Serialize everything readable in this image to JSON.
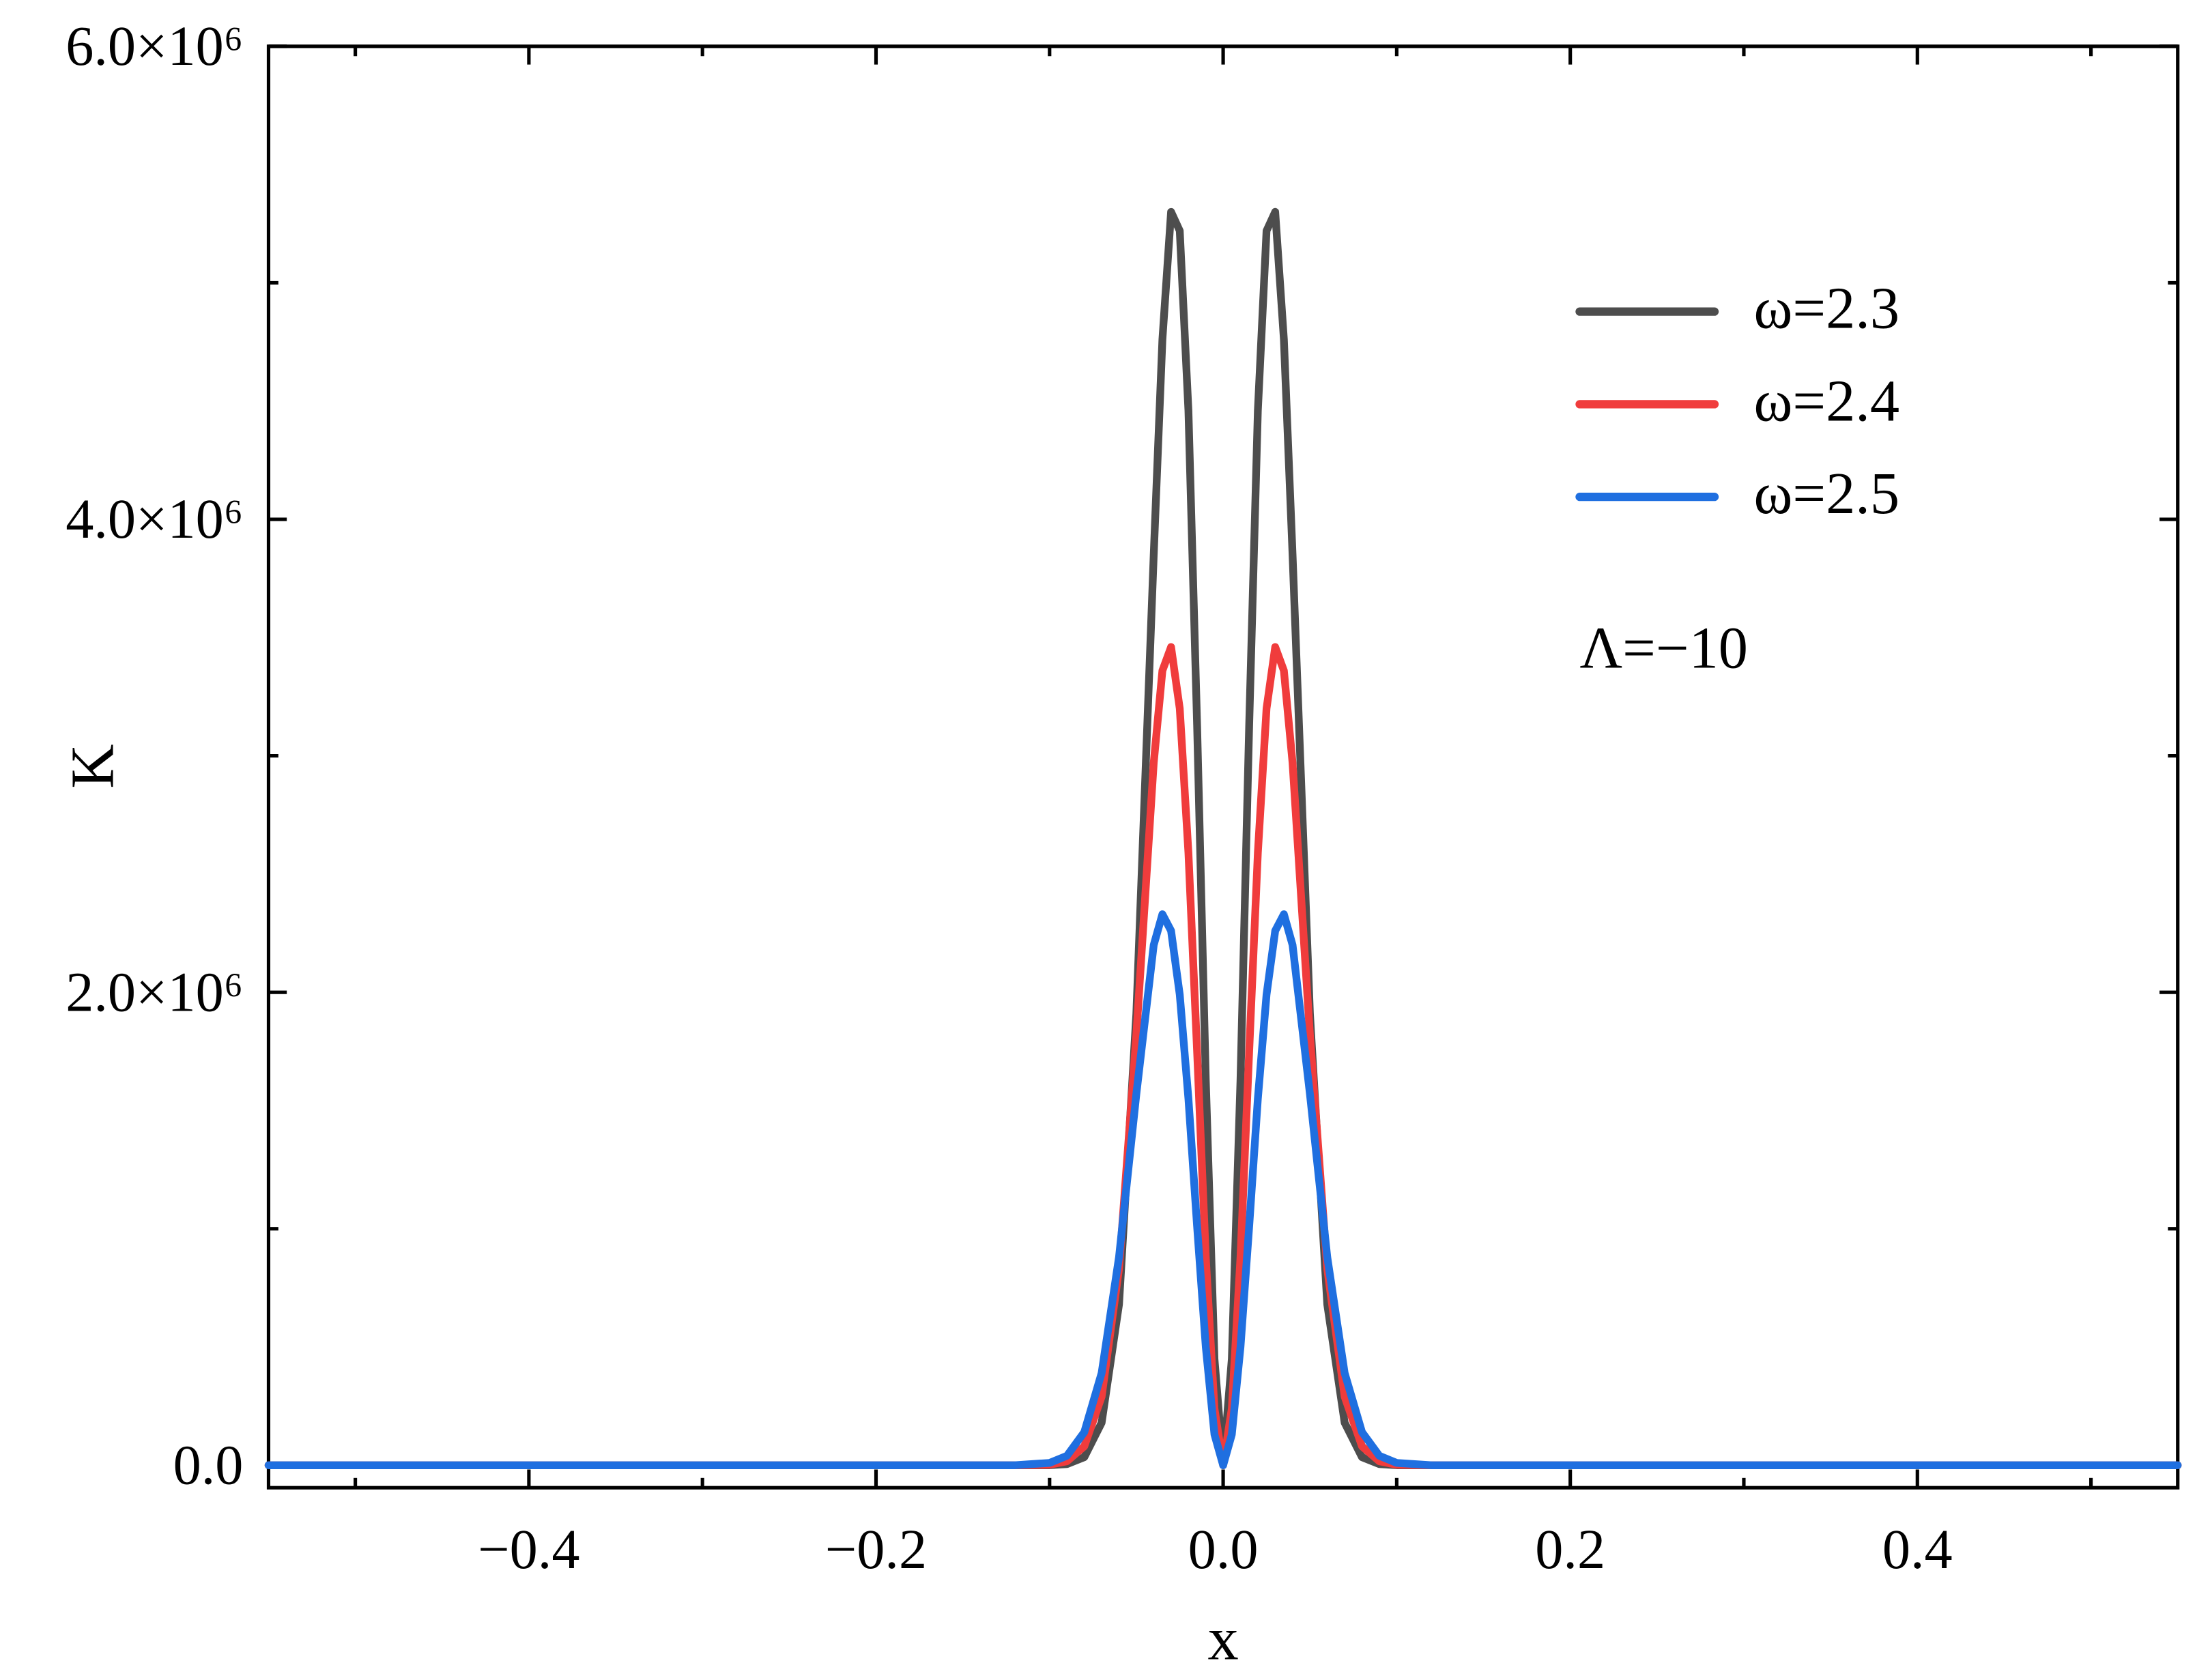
{
  "chart_data": {
    "type": "line",
    "xlabel": "x",
    "ylabel": "K",
    "annotation": "Λ=−10",
    "x": [
      -0.55,
      -0.12,
      -0.1,
      -0.09,
      -0.08,
      -0.07,
      -0.06,
      -0.05,
      -0.04,
      -0.035,
      -0.03,
      -0.025,
      -0.02,
      -0.015,
      -0.01,
      -0.005,
      0,
      0.005,
      0.01,
      0.015,
      0.02,
      0.025,
      0.03,
      0.035,
      0.04,
      0.05,
      0.06,
      0.07,
      0.08,
      0.09,
      0.1,
      0.12,
      0.55
    ],
    "series": [
      {
        "name": "ω=2.3",
        "color": "#4d4d4d",
        "values": [
          0,
          0,
          0,
          5000,
          34000,
          180000,
          680000,
          1910000,
          3850000,
          4760000,
          5300000,
          5220000,
          4460000,
          3130000,
          1630000,
          450000,
          0,
          450000,
          1630000,
          3130000,
          4460000,
          5220000,
          5300000,
          4760000,
          3850000,
          1910000,
          680000,
          180000,
          34000,
          5000,
          0,
          0,
          0
        ]
      },
      {
        "name": "ω=2.4",
        "color": "#f03c3c",
        "values": [
          0,
          0,
          2000,
          17000,
          80000,
          290000,
          830000,
          1820000,
          2970000,
          3360000,
          3460000,
          3200000,
          2590000,
          1750000,
          880000,
          240000,
          0,
          240000,
          880000,
          1750000,
          2590000,
          3200000,
          3460000,
          3360000,
          2970000,
          1820000,
          830000,
          290000,
          80000,
          17000,
          2000,
          0,
          0
        ]
      },
      {
        "name": "ω=2.5",
        "color": "#1f6fe0",
        "values": [
          0,
          0,
          10000,
          40000,
          140000,
          390000,
          880000,
          1570000,
          2200000,
          2330000,
          2260000,
          1990000,
          1550000,
          1010000,
          500000,
          130000,
          0,
          130000,
          500000,
          1010000,
          1550000,
          1990000,
          2260000,
          2330000,
          2200000,
          1570000,
          880000,
          390000,
          140000,
          40000,
          10000,
          0,
          0
        ]
      }
    ],
    "xlim": [
      -0.55,
      0.55
    ],
    "ylim": [
      -95000,
      6000000
    ],
    "xticks": [
      {
        "value": -0.4,
        "label": "−0.4"
      },
      {
        "value": -0.2,
        "label": "−0.2"
      },
      {
        "value": 0,
        "label": "0.0"
      },
      0.2,
      0.4
    ],
    "yticks": [
      {
        "value": 0,
        "label": "0.0"
      },
      {
        "value": 2000000,
        "label": "2.0×10⁶"
      },
      {
        "value": 4000000,
        "label": "4.0×10⁶"
      },
      {
        "value": 6000000,
        "label": "6.0×10⁶"
      }
    ],
    "x_minor_ticks": [
      -0.5,
      -0.3,
      -0.1,
      0.1,
      0.3,
      0.5
    ],
    "y_minor_ticks": [
      1000000,
      3000000,
      5000000
    ],
    "legend": "upper right",
    "grid": false
  }
}
